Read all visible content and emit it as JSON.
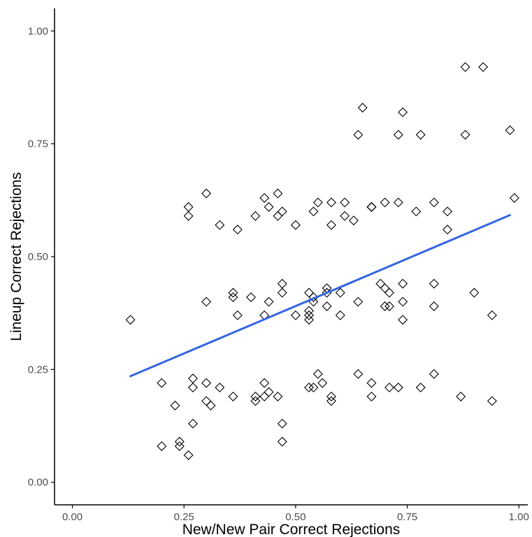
{
  "chart_data": {
    "type": "scatter",
    "title": "",
    "xlabel": "New/New Pair Correct Rejections",
    "ylabel": "Lineup Correct Rejections",
    "xlim": [
      -0.04,
      1.02
    ],
    "ylim": [
      -0.05,
      1.05
    ],
    "xticks": [
      "0.00",
      "0.25",
      "0.50",
      "0.75",
      "1.00"
    ],
    "yticks": [
      "0.00",
      "0.25",
      "0.50",
      "0.75",
      "1.00"
    ],
    "xtick_values": [
      0,
      0.25,
      0.5,
      0.75,
      1
    ],
    "ytick_values": [
      0,
      0.25,
      0.5,
      0.75,
      1
    ],
    "grid": false,
    "point_marker": "diamond-open",
    "point_color": "#000000",
    "trend_color": "#3366e0",
    "trend_line": {
      "x": [
        0.13,
        0.98
      ],
      "y": [
        0.235,
        0.592
      ]
    },
    "points": [
      [
        0.13,
        0.36
      ],
      [
        0.2,
        0.08
      ],
      [
        0.2,
        0.22
      ],
      [
        0.23,
        0.17
      ],
      [
        0.24,
        0.09
      ],
      [
        0.24,
        0.08
      ],
      [
        0.26,
        0.06
      ],
      [
        0.27,
        0.13
      ],
      [
        0.27,
        0.21
      ],
      [
        0.27,
        0.23
      ],
      [
        0.26,
        0.59
      ],
      [
        0.26,
        0.61
      ],
      [
        0.3,
        0.64
      ],
      [
        0.3,
        0.4
      ],
      [
        0.3,
        0.22
      ],
      [
        0.3,
        0.18
      ],
      [
        0.31,
        0.17
      ],
      [
        0.33,
        0.57
      ],
      [
        0.33,
        0.21
      ],
      [
        0.36,
        0.19
      ],
      [
        0.36,
        0.41
      ],
      [
        0.36,
        0.42
      ],
      [
        0.37,
        0.56
      ],
      [
        0.37,
        0.37
      ],
      [
        0.4,
        0.41
      ],
      [
        0.41,
        0.59
      ],
      [
        0.41,
        0.19
      ],
      [
        0.41,
        0.18
      ],
      [
        0.43,
        0.63
      ],
      [
        0.43,
        0.37
      ],
      [
        0.43,
        0.22
      ],
      [
        0.43,
        0.19
      ],
      [
        0.44,
        0.61
      ],
      [
        0.44,
        0.4
      ],
      [
        0.44,
        0.2
      ],
      [
        0.46,
        0.64
      ],
      [
        0.46,
        0.59
      ],
      [
        0.46,
        0.19
      ],
      [
        0.47,
        0.13
      ],
      [
        0.47,
        0.6
      ],
      [
        0.47,
        0.44
      ],
      [
        0.47,
        0.42
      ],
      [
        0.47,
        0.09
      ],
      [
        0.5,
        0.57
      ],
      [
        0.5,
        0.37
      ],
      [
        0.53,
        0.42
      ],
      [
        0.53,
        0.38
      ],
      [
        0.53,
        0.36
      ],
      [
        0.53,
        0.37
      ],
      [
        0.53,
        0.21
      ],
      [
        0.54,
        0.6
      ],
      [
        0.54,
        0.41
      ],
      [
        0.54,
        0.21
      ],
      [
        0.54,
        0.4
      ],
      [
        0.55,
        0.62
      ],
      [
        0.55,
        0.24
      ],
      [
        0.56,
        0.22
      ],
      [
        0.57,
        0.43
      ],
      [
        0.57,
        0.42
      ],
      [
        0.57,
        0.39
      ],
      [
        0.58,
        0.62
      ],
      [
        0.58,
        0.57
      ],
      [
        0.58,
        0.19
      ],
      [
        0.58,
        0.18
      ],
      [
        0.6,
        0.42
      ],
      [
        0.6,
        0.37
      ],
      [
        0.61,
        0.62
      ],
      [
        0.61,
        0.59
      ],
      [
        0.63,
        0.58
      ],
      [
        0.64,
        0.4
      ],
      [
        0.64,
        0.77
      ],
      [
        0.64,
        0.24
      ],
      [
        0.65,
        0.83
      ],
      [
        0.67,
        0.61
      ],
      [
        0.67,
        0.61
      ],
      [
        0.67,
        0.61
      ],
      [
        0.67,
        0.22
      ],
      [
        0.67,
        0.19
      ],
      [
        0.69,
        0.44
      ],
      [
        0.7,
        0.43
      ],
      [
        0.7,
        0.39
      ],
      [
        0.7,
        0.62
      ],
      [
        0.71,
        0.42
      ],
      [
        0.71,
        0.39
      ],
      [
        0.71,
        0.21
      ],
      [
        0.73,
        0.77
      ],
      [
        0.73,
        0.62
      ],
      [
        0.73,
        0.21
      ],
      [
        0.74,
        0.82
      ],
      [
        0.74,
        0.44
      ],
      [
        0.74,
        0.4
      ],
      [
        0.74,
        0.36
      ],
      [
        0.77,
        0.6
      ],
      [
        0.78,
        0.77
      ],
      [
        0.78,
        0.21
      ],
      [
        0.81,
        0.44
      ],
      [
        0.81,
        0.62
      ],
      [
        0.81,
        0.24
      ],
      [
        0.81,
        0.39
      ],
      [
        0.84,
        0.6
      ],
      [
        0.84,
        0.56
      ],
      [
        0.87,
        0.19
      ],
      [
        0.88,
        0.92
      ],
      [
        0.88,
        0.77
      ],
      [
        0.9,
        0.42
      ],
      [
        0.92,
        0.92
      ],
      [
        0.94,
        0.37
      ],
      [
        0.94,
        0.18
      ],
      [
        0.98,
        0.78
      ],
      [
        0.99,
        0.63
      ]
    ]
  }
}
